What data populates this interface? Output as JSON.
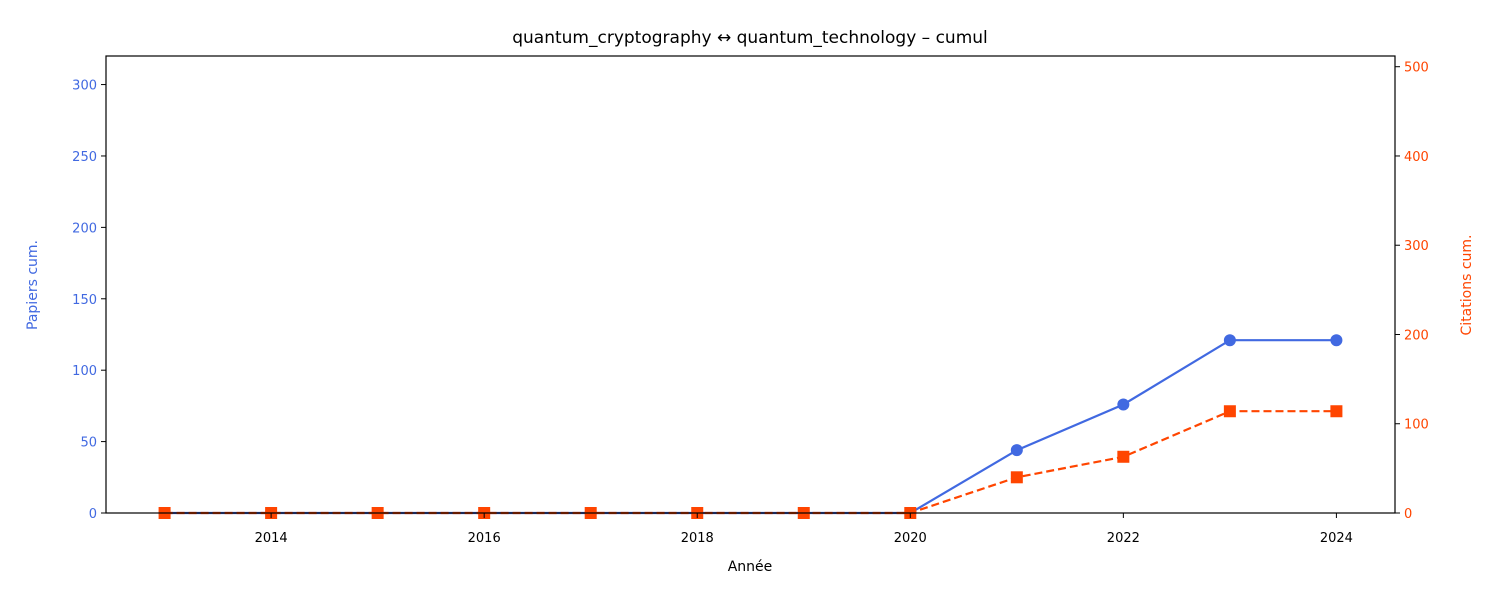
{
  "chart_data": {
    "type": "line",
    "title": "quantum_cryptography  ↔  quantum_technology  –  cumul",
    "xlabel": "Année",
    "ylabel_left": "Papiers cum.",
    "ylabel_right": "Citations cum.",
    "x": [
      2013,
      2014,
      2015,
      2016,
      2017,
      2018,
      2019,
      2020,
      2021,
      2022,
      2023,
      2024
    ],
    "xlim": [
      2012.45,
      2024.55
    ],
    "x_ticks": [
      "2014",
      "2016",
      "2018",
      "2020",
      "2022",
      "2024"
    ],
    "ylim_left": [
      0,
      320
    ],
    "y_ticks_left": [
      "0",
      "50",
      "100",
      "150",
      "200",
      "250",
      "300"
    ],
    "ylim_right": [
      0,
      512
    ],
    "y_ticks_right": [
      "0",
      "100",
      "200",
      "300",
      "400",
      "500"
    ],
    "grid": false,
    "series": [
      {
        "axis": "left",
        "color": "#4169e1",
        "marker": "circle",
        "linestyle": "solid",
        "values": [
          0,
          0,
          0,
          0,
          0,
          0,
          0,
          0,
          44,
          76,
          121,
          121
        ]
      },
      {
        "axis": "right",
        "color": "#ff4500",
        "marker": "square",
        "linestyle": "dashed",
        "values": [
          0,
          0,
          0,
          0,
          0,
          0,
          0,
          0,
          40,
          63,
          114,
          114
        ]
      }
    ]
  }
}
